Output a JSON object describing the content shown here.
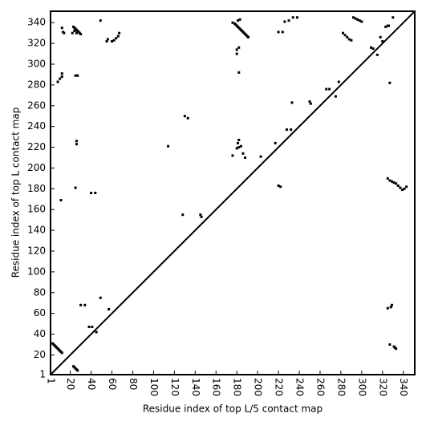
{
  "chart_data": {
    "type": "scatter",
    "xlabel": "Residue index of top L/5 contact map",
    "ylabel": "Residue index of top L contact map",
    "xlim": [
      1,
      351
    ],
    "ylim": [
      1,
      351
    ],
    "xticks": [
      1,
      20,
      40,
      60,
      80,
      100,
      120,
      140,
      160,
      180,
      200,
      220,
      240,
      260,
      280,
      300,
      320,
      340
    ],
    "yticks": [
      1,
      20,
      40,
      60,
      80,
      100,
      120,
      140,
      160,
      180,
      200,
      220,
      240,
      260,
      280,
      300,
      320,
      340
    ],
    "color": "#000000",
    "x": [
      23,
      24,
      25,
      26,
      27,
      28,
      29,
      30,
      24,
      26,
      22,
      12,
      13,
      14,
      49,
      55,
      56,
      60,
      62,
      64,
      66,
      67,
      8,
      10,
      12,
      12,
      25,
      27,
      26,
      26,
      25,
      40,
      44,
      11,
      30,
      34,
      38,
      41,
      45,
      49,
      57,
      3,
      4,
      5,
      6,
      7,
      8,
      9,
      10,
      11,
      12,
      23,
      24,
      25,
      26,
      27,
      114,
      130,
      133,
      128,
      145,
      146,
      176,
      178,
      179,
      180,
      181,
      182,
      183,
      184,
      185,
      186,
      187,
      188,
      189,
      190,
      191,
      181,
      183,
      180,
      182,
      180,
      182,
      180,
      182,
      184,
      181,
      182,
      176,
      186,
      188,
      203,
      217,
      220,
      224,
      222,
      220,
      226,
      230,
      234,
      238,
      228,
      232,
      233,
      250,
      251,
      266,
      269,
      275,
      278,
      282,
      284,
      286,
      288,
      290,
      292,
      294,
      296,
      298,
      300,
      309,
      311,
      315,
      318,
      320,
      323,
      325,
      327,
      330,
      326,
      325,
      327,
      329,
      331,
      333,
      335,
      337,
      339,
      341,
      343,
      327,
      331,
      332,
      333,
      325,
      328,
      329
    ],
    "y": [
      336,
      335,
      334,
      333,
      332,
      331,
      330,
      329,
      332,
      330,
      330,
      335,
      331,
      330,
      342,
      322,
      324,
      322,
      323,
      325,
      327,
      330,
      283,
      286,
      288,
      291,
      289,
      289,
      226,
      223,
      181,
      176,
      176,
      169,
      68,
      68,
      47,
      47,
      42,
      75,
      64,
      31,
      30,
      29,
      28,
      27,
      26,
      25,
      24,
      23,
      22,
      9,
      8,
      7,
      6,
      5,
      221,
      250,
      248,
      155,
      155,
      153,
      340,
      339,
      338,
      337,
      336,
      335,
      334,
      333,
      332,
      331,
      330,
      329,
      328,
      327,
      326,
      342,
      343,
      314,
      316,
      310,
      292,
      219,
      220,
      221,
      224,
      227,
      212,
      214,
      210,
      211,
      224,
      331,
      331,
      182,
      183,
      341,
      342,
      345,
      345,
      237,
      237,
      263,
      264,
      262,
      276,
      276,
      269,
      283,
      330,
      328,
      326,
      324,
      323,
      345,
      344,
      343,
      342,
      341,
      316,
      315,
      309,
      326,
      322,
      336,
      337,
      282,
      345,
      337,
      190,
      188,
      187,
      186,
      185,
      183,
      181,
      179,
      180,
      182,
      30,
      28,
      27,
      26,
      65,
      66,
      68
    ]
  }
}
